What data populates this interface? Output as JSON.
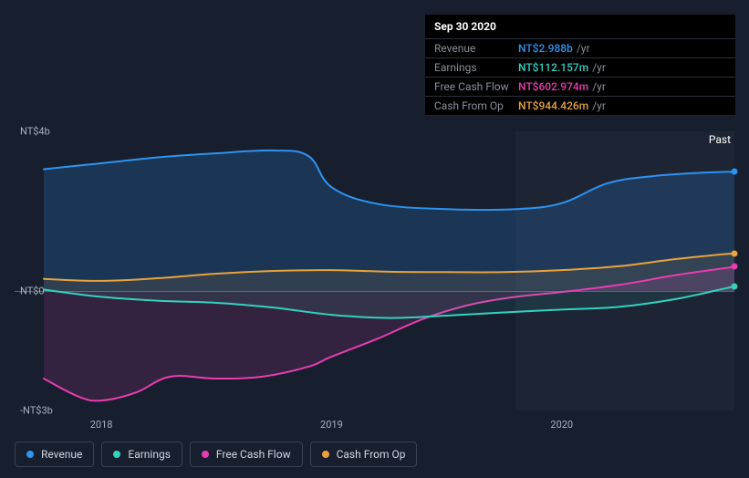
{
  "background_color": "#171f2e",
  "tooltip": {
    "date": "Sep 30 2020",
    "rows": [
      {
        "label": "Revenue",
        "value": "NT$2.988b",
        "unit": "/yr",
        "color": "#2e93f1"
      },
      {
        "label": "Earnings",
        "value": "NT$112.157m",
        "unit": "/yr",
        "color": "#34d1bf"
      },
      {
        "label": "Free Cash Flow",
        "value": "NT$602.974m",
        "unit": "/yr",
        "color": "#e83db0"
      },
      {
        "label": "Cash From Op",
        "value": "NT$944.426m",
        "unit": "/yr",
        "color": "#e8a33d"
      }
    ]
  },
  "chart": {
    "type": "area",
    "y_axis": {
      "min": -3000,
      "max": 4000,
      "ticks": [
        {
          "value": 4000,
          "label": "NT$4b"
        },
        {
          "value": 0,
          "label": "NT$0"
        },
        {
          "value": -3000,
          "label": "-NT$3b"
        }
      ],
      "label_color": "#a9b0bd",
      "label_fontsize": 11
    },
    "x_axis": {
      "min": 2017.75,
      "max": 2020.75,
      "ticks": [
        {
          "value": 2018,
          "label": "2018"
        },
        {
          "value": 2019,
          "label": "2019"
        },
        {
          "value": 2020,
          "label": "2020"
        }
      ],
      "label_color": "#a9b0bd",
      "label_fontsize": 11
    },
    "zero_line_color": "#5a6172",
    "past_label": "Past",
    "highlight_band": {
      "x_start": 2019.8,
      "x_end": 2020.75,
      "color": "rgba(180,190,210,0.04)"
    },
    "series": [
      {
        "name": "Revenue",
        "color": "#2e93f1",
        "fill_opacity": 0.2,
        "line_width": 2,
        "points": [
          [
            2017.75,
            3050
          ],
          [
            2018.0,
            3200
          ],
          [
            2018.25,
            3350
          ],
          [
            2018.5,
            3450
          ],
          [
            2018.75,
            3520
          ],
          [
            2018.9,
            3380
          ],
          [
            2019.0,
            2600
          ],
          [
            2019.2,
            2180
          ],
          [
            2019.5,
            2050
          ],
          [
            2019.8,
            2050
          ],
          [
            2020.0,
            2200
          ],
          [
            2020.2,
            2700
          ],
          [
            2020.4,
            2880
          ],
          [
            2020.6,
            2960
          ],
          [
            2020.75,
            2988
          ]
        ]
      },
      {
        "name": "Cash From Op",
        "color": "#e8a33d",
        "fill_opacity": 0.1,
        "line_width": 2,
        "points": [
          [
            2017.75,
            300
          ],
          [
            2018.0,
            250
          ],
          [
            2018.25,
            320
          ],
          [
            2018.5,
            430
          ],
          [
            2018.75,
            500
          ],
          [
            2019.0,
            520
          ],
          [
            2019.25,
            480
          ],
          [
            2019.5,
            470
          ],
          [
            2019.75,
            470
          ],
          [
            2020.0,
            520
          ],
          [
            2020.25,
            620
          ],
          [
            2020.5,
            800
          ],
          [
            2020.75,
            944
          ]
        ]
      },
      {
        "name": "Free Cash Flow",
        "color": "#e83db0",
        "fill_opacity": 0.14,
        "line_width": 2,
        "points": [
          [
            2017.75,
            -2200
          ],
          [
            2017.9,
            -2650
          ],
          [
            2018.0,
            -2750
          ],
          [
            2018.15,
            -2550
          ],
          [
            2018.3,
            -2150
          ],
          [
            2018.5,
            -2200
          ],
          [
            2018.7,
            -2150
          ],
          [
            2018.9,
            -1900
          ],
          [
            2019.0,
            -1650
          ],
          [
            2019.2,
            -1200
          ],
          [
            2019.4,
            -700
          ],
          [
            2019.6,
            -350
          ],
          [
            2019.8,
            -150
          ],
          [
            2020.0,
            -30
          ],
          [
            2020.25,
            150
          ],
          [
            2020.5,
            400
          ],
          [
            2020.75,
            603
          ]
        ]
      },
      {
        "name": "Earnings",
        "color": "#34d1bf",
        "fill_opacity": 0.1,
        "line_width": 2,
        "points": [
          [
            2017.75,
            30
          ],
          [
            2018.0,
            -150
          ],
          [
            2018.25,
            -250
          ],
          [
            2018.5,
            -300
          ],
          [
            2018.75,
            -420
          ],
          [
            2019.0,
            -600
          ],
          [
            2019.25,
            -680
          ],
          [
            2019.5,
            -620
          ],
          [
            2019.75,
            -540
          ],
          [
            2020.0,
            -470
          ],
          [
            2020.25,
            -400
          ],
          [
            2020.5,
            -200
          ],
          [
            2020.7,
            50
          ],
          [
            2020.75,
            112
          ]
        ]
      }
    ]
  },
  "legend": {
    "items": [
      {
        "label": "Revenue",
        "color": "#2e93f1"
      },
      {
        "label": "Earnings",
        "color": "#34d1bf"
      },
      {
        "label": "Free Cash Flow",
        "color": "#e83db0"
      },
      {
        "label": "Cash From Op",
        "color": "#e8a33d"
      }
    ],
    "border_color": "#3a4152",
    "text_color": "#d0d5df",
    "fontsize": 12
  }
}
